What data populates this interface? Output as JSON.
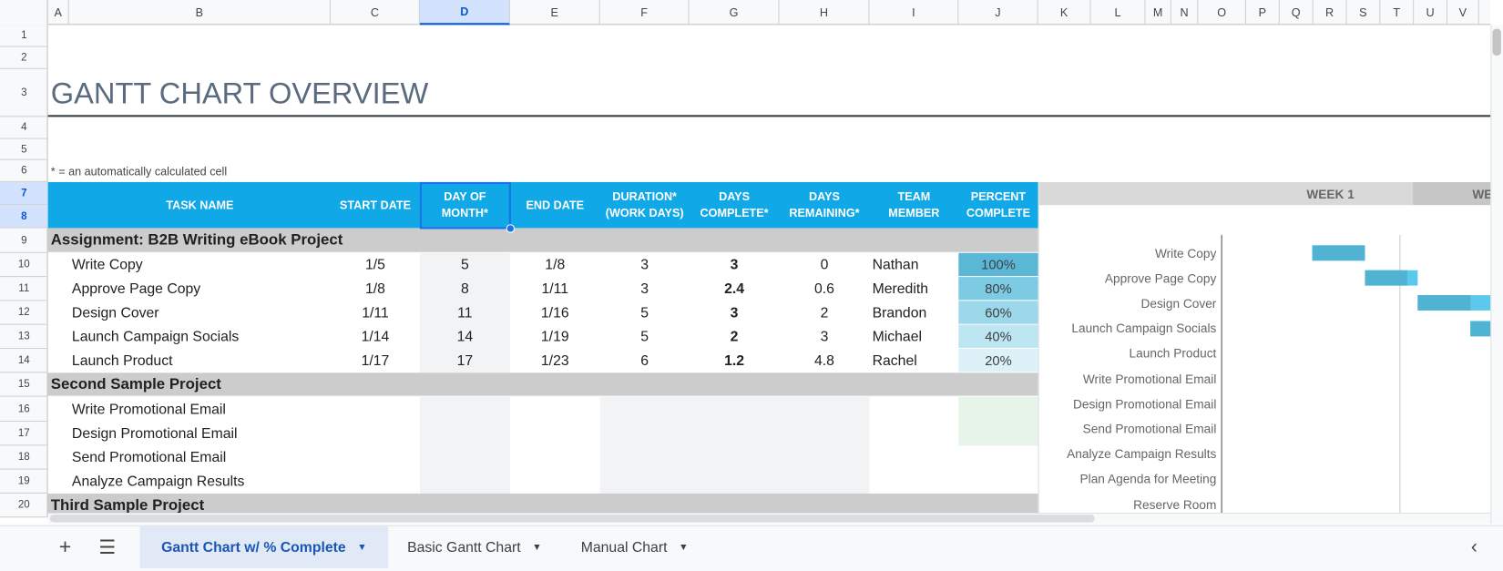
{
  "column_headers": [
    "A",
    "B",
    "C",
    "D",
    "E",
    "F",
    "G",
    "H",
    "I",
    "J",
    "K",
    "L",
    "M",
    "N",
    "O",
    "P",
    "Q",
    "R",
    "S",
    "T",
    "U",
    "V"
  ],
  "row_numbers": [
    "1",
    "2",
    "3",
    "4",
    "5",
    "6",
    "7",
    "8",
    "9",
    "10",
    "11",
    "12",
    "13",
    "14",
    "15",
    "16",
    "17",
    "18",
    "19",
    "20"
  ],
  "title": "GANTT CHART OVERVIEW",
  "note": "* = an automatically calculated cell",
  "table": {
    "header": [
      "TASK NAME",
      "START DATE",
      "DAY OF\nMONTH*",
      "END DATE",
      "DURATION*\n(WORK DAYS)",
      "DAYS\nCOMPLETE*",
      "DAYS\nREMAINING*",
      "TEAM\nMEMBER",
      "PERCENT\nCOMPLETE"
    ],
    "sections": [
      {
        "title": "Assignment: B2B Writing eBook Project",
        "tasks": [
          [
            "Write Copy",
            "1/5",
            "5",
            "1/8",
            "3",
            "3",
            "0",
            "Nathan",
            "100%"
          ],
          [
            "Approve Page Copy",
            "1/8",
            "8",
            "1/11",
            "3",
            "2.4",
            "0.6",
            "Meredith",
            "80%"
          ],
          [
            "Design Cover",
            "1/11",
            "11",
            "1/16",
            "5",
            "3",
            "2",
            "Brandon",
            "60%"
          ],
          [
            "Launch Campaign Socials",
            "1/14",
            "14",
            "1/19",
            "5",
            "2",
            "3",
            "Michael",
            "40%"
          ],
          [
            "Launch Product",
            "1/17",
            "17",
            "1/23",
            "6",
            "1.2",
            "4.8",
            "Rachel",
            "20%"
          ]
        ]
      },
      {
        "title": "Second Sample Project",
        "tasks": [
          [
            "Write Promotional Email"
          ],
          [
            "Design Promotional Email"
          ],
          [
            "Send Promotional Email"
          ],
          [
            "Analyze Campaign Results"
          ]
        ]
      },
      {
        "title": "Third Sample Project",
        "tasks": []
      }
    ]
  },
  "gantt": {
    "week_labels": [
      "WEEK 1",
      "WE"
    ],
    "labels": [
      "Write Copy",
      "Approve Page Copy",
      "Design Cover",
      "Launch Campaign Socials",
      "Launch Product",
      "Write Promotional Email",
      "Design Promotional Email",
      "Send Promotional Email",
      "Analyze Campaign Results",
      "Plan Agenda for Meeting",
      "Reserve Room"
    ]
  },
  "tabs": [
    "Gantt Chart w/ % Complete",
    "Basic Gantt Chart",
    "Manual Chart"
  ]
}
